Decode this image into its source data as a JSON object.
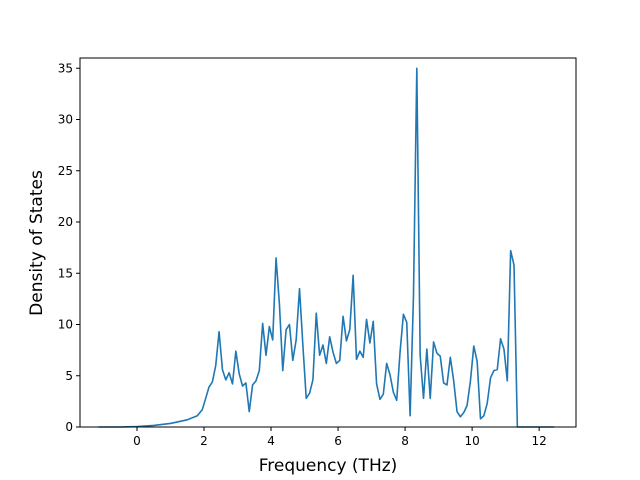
{
  "chart_data": {
    "type": "line",
    "title": "",
    "xlabel": "Frequency (THz)",
    "ylabel": "Density of States",
    "xlim": [
      -1.7,
      13.1
    ],
    "ylim": [
      0,
      36
    ],
    "xticks": [
      0,
      2,
      4,
      6,
      8,
      10,
      12
    ],
    "yticks": [
      0,
      5,
      10,
      15,
      20,
      25,
      30,
      35
    ],
    "grid": false,
    "legend": "none",
    "series": [
      {
        "color": "#1f77b4",
        "x": [
          -1.15,
          -0.5,
          0.0,
          0.5,
          1.0,
          1.5,
          1.8,
          1.95,
          2.05,
          2.15,
          2.25,
          2.35,
          2.45,
          2.55,
          2.65,
          2.75,
          2.85,
          2.95,
          3.05,
          3.15,
          3.25,
          3.35,
          3.45,
          3.55,
          3.65,
          3.75,
          3.85,
          3.95,
          4.05,
          4.15,
          4.25,
          4.35,
          4.45,
          4.55,
          4.65,
          4.75,
          4.85,
          4.95,
          5.05,
          5.15,
          5.25,
          5.35,
          5.45,
          5.55,
          5.65,
          5.75,
          5.85,
          5.95,
          6.05,
          6.15,
          6.25,
          6.35,
          6.45,
          6.55,
          6.65,
          6.75,
          6.85,
          6.95,
          7.05,
          7.15,
          7.25,
          7.35,
          7.45,
          7.55,
          7.65,
          7.75,
          7.85,
          7.95,
          8.05,
          8.15,
          8.25,
          8.35,
          8.45,
          8.55,
          8.65,
          8.75,
          8.85,
          8.95,
          9.05,
          9.15,
          9.25,
          9.35,
          9.45,
          9.55,
          9.65,
          9.75,
          9.85,
          9.95,
          10.05,
          10.15,
          10.25,
          10.35,
          10.45,
          10.55,
          10.65,
          10.75,
          10.85,
          10.95,
          11.05,
          11.15,
          11.25,
          11.35,
          11.5,
          12.0,
          12.45
        ],
        "y": [
          0,
          0,
          0.05,
          0.15,
          0.35,
          0.7,
          1.1,
          1.7,
          2.8,
          3.9,
          4.4,
          6.0,
          9.3,
          5.6,
          4.6,
          5.3,
          4.2,
          7.4,
          5.2,
          4.0,
          4.3,
          1.5,
          4.1,
          4.5,
          5.5,
          10.1,
          7.0,
          9.8,
          8.5,
          16.5,
          12.0,
          5.5,
          9.5,
          10.0,
          6.5,
          8.5,
          13.5,
          8.0,
          2.8,
          3.3,
          4.6,
          11.1,
          7.0,
          8.0,
          6.2,
          8.8,
          7.3,
          6.2,
          6.5,
          10.8,
          8.4,
          9.5,
          14.8,
          6.6,
          7.4,
          6.8,
          10.5,
          8.2,
          10.3,
          4.2,
          2.7,
          3.2,
          6.2,
          5.1,
          3.4,
          2.6,
          7.3,
          11.0,
          10.2,
          1.1,
          12.7,
          35.0,
          7.0,
          2.8,
          7.6,
          2.8,
          8.3,
          7.2,
          6.9,
          4.3,
          4.1,
          6.8,
          4.5,
          1.5,
          1.0,
          1.4,
          2.1,
          4.5,
          7.9,
          6.4,
          0.8,
          1.1,
          2.3,
          4.8,
          5.5,
          5.6,
          8.6,
          7.6,
          4.5,
          17.2,
          15.8,
          0.0,
          0.0,
          0.0,
          0.0
        ]
      }
    ]
  }
}
